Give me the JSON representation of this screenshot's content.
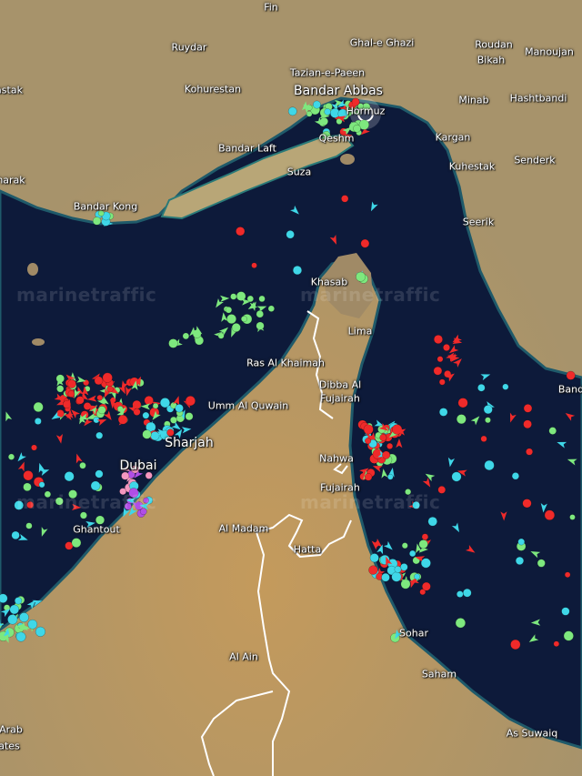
{
  "map": {
    "watermark": "marinetraffic",
    "colors": {
      "sea": "#0d1a3a",
      "land": "#a8966c",
      "border": "#ffffff",
      "cargo": "#7ee87e",
      "tanker": "#ef2a2a",
      "passenger": "#3fd7e8",
      "tug": "#b14ee6",
      "pleasure": "#f497c0"
    },
    "labels": [
      {
        "text": "Fin",
        "name": "place-fin"
      },
      {
        "text": "Ruydar",
        "name": "place-ruydar"
      },
      {
        "text": "Ghal-e Ghazi",
        "name": "place-ghal-e-ghazi"
      },
      {
        "text": "Roudan",
        "name": "place-roudan"
      },
      {
        "text": "Manoujan",
        "name": "place-manoujan"
      },
      {
        "text": "Bikah",
        "name": "place-bikah"
      },
      {
        "text": "Tazian-e-Paeen",
        "name": "place-tazian"
      },
      {
        "text": "astak",
        "name": "place-astak"
      },
      {
        "text": "Kohurestan",
        "name": "place-kohurestan"
      },
      {
        "text": "Bandar Abbas",
        "name": "place-bandar-abbas"
      },
      {
        "text": "Hormuz",
        "name": "place-hormuz"
      },
      {
        "text": "Minab",
        "name": "place-minab"
      },
      {
        "text": "Hashtbandi",
        "name": "place-hashtbandi"
      },
      {
        "text": "Qeshm",
        "name": "place-qeshm"
      },
      {
        "text": "Bandar Laft",
        "name": "place-bandar-laft"
      },
      {
        "text": "Kargan",
        "name": "place-kargan"
      },
      {
        "text": "Suza",
        "name": "place-suza"
      },
      {
        "text": "Kuhestak",
        "name": "place-kuhestak"
      },
      {
        "text": "Senderk",
        "name": "place-senderk"
      },
      {
        "text": "harak",
        "name": "place-harak"
      },
      {
        "text": "Bandar Kong",
        "name": "place-bandar-kong"
      },
      {
        "text": "Seerik",
        "name": "place-seerik"
      },
      {
        "text": "Khasab",
        "name": "place-khasab"
      },
      {
        "text": "Lima",
        "name": "place-lima"
      },
      {
        "text": "Ras Al Khaimah",
        "name": "place-ras-al-khaimah"
      },
      {
        "text": "Dibba Al",
        "name": "place-dibba-1"
      },
      {
        "text": "Fujairah",
        "name": "place-dibba-2"
      },
      {
        "text": "Umm Al Quwain",
        "name": "place-umm-al-quwain"
      },
      {
        "text": "Sharjah",
        "name": "place-sharjah"
      },
      {
        "text": "Dubai",
        "name": "place-dubai"
      },
      {
        "text": "Nahwa",
        "name": "place-nahwa"
      },
      {
        "text": "Fujairah",
        "name": "place-fujairah"
      },
      {
        "text": "Ghantout",
        "name": "place-ghantout"
      },
      {
        "text": "Al Madam",
        "name": "place-al-madam"
      },
      {
        "text": "Hatta",
        "name": "place-hatta"
      },
      {
        "text": "Sohar",
        "name": "place-sohar"
      },
      {
        "text": "Al Ain",
        "name": "place-al-ain"
      },
      {
        "text": "Saham",
        "name": "place-saham"
      },
      {
        "text": "As Suwaiq",
        "name": "place-as-suwaiq"
      },
      {
        "text": "Band",
        "name": "place-band"
      },
      {
        "text": "Arab",
        "name": "place-uae-1"
      },
      {
        "text": "ates",
        "name": "place-uae-2"
      }
    ]
  }
}
